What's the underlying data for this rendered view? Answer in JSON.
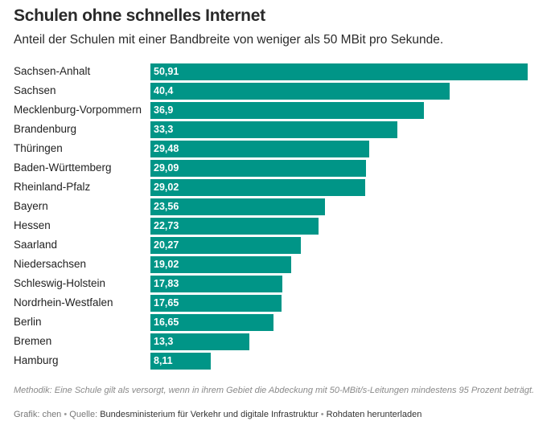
{
  "header": {
    "title": "Schulen ohne schnelles Internet",
    "subtitle": "Anteil der Schulen mit einer Bandbreite von weniger als 50 MBit pro Sekunde."
  },
  "colors": {
    "bar": "#009587"
  },
  "chart_data": {
    "type": "bar",
    "orientation": "horizontal",
    "categories": [
      "Sachsen-Anhalt",
      "Sachsen",
      "Mecklenburg-Vorpommern",
      "Brandenburg",
      "Thüringen",
      "Baden-Württemberg",
      "Rheinland-Pfalz",
      "Bayern",
      "Hessen",
      "Saarland",
      "Niedersachsen",
      "Schleswig-Holstein",
      "Nordrhein-Westfalen",
      "Berlin",
      "Bremen",
      "Hamburg"
    ],
    "values": [
      50.91,
      40.4,
      36.9,
      33.3,
      29.48,
      29.09,
      29.02,
      23.56,
      22.73,
      20.27,
      19.02,
      17.83,
      17.65,
      16.65,
      13.3,
      8.11
    ],
    "value_labels": [
      "50,91",
      "40,4",
      "36,9",
      "33,3",
      "29,48",
      "29,09",
      "29,02",
      "23,56",
      "22,73",
      "20,27",
      "19,02",
      "17,83",
      "17,65",
      "16,65",
      "13,3",
      "8,11"
    ],
    "xlim": [
      0,
      50.91
    ],
    "title": "Schulen ohne schnelles Internet",
    "subtitle": "Anteil der Schulen mit einer Bandbreite von weniger als 50 MBit pro Sekunde.",
    "grid": false
  },
  "footer": {
    "note": "Methodik: Eine Schule gilt als versorgt, wenn in ihrem Gebiet die Abdeckung mit 50-MBit/s-Leitungen mindestens 95 Prozent beträgt.",
    "credit": "Grafik: chen",
    "separator": "•",
    "source_label": "Quelle:",
    "source": "Bundesministerium für Verkehr und digitale Infrastruktur",
    "download_link": "Rohdaten herunterladen"
  }
}
